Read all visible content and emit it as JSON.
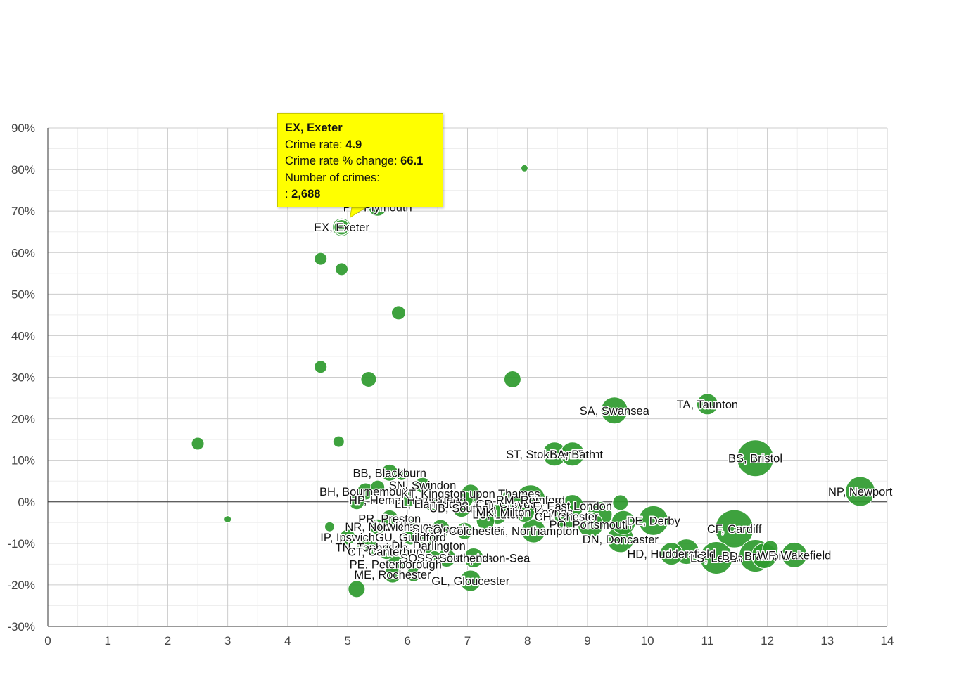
{
  "colors": {
    "bubble": "#2e9a2e",
    "bubble_stroke": "#1f7a1f",
    "tooltip_bg": "#ffff00",
    "grid": "#cccccc",
    "minor_grid": "#eeeeee",
    "zero_line": "#333333"
  },
  "chart_data": {
    "type": "scatter",
    "subtype": "bubble",
    "title": "",
    "xlabel": "",
    "ylabel": "",
    "xlim": [
      0,
      14
    ],
    "ylim": [
      -30,
      90
    ],
    "x_ticks": [
      0,
      1,
      2,
      3,
      4,
      5,
      6,
      7,
      8,
      9,
      10,
      11,
      12,
      13,
      14
    ],
    "x_tick_labels": [
      "0",
      "1",
      "2",
      "3",
      "4",
      "5",
      "6",
      "7",
      "8",
      "9",
      "10",
      "11",
      "12",
      "13",
      "14"
    ],
    "y_ticks": [
      90,
      80,
      70,
      60,
      50,
      40,
      30,
      20,
      10,
      0,
      -10,
      -20,
      -30
    ],
    "y_tick_labels": [
      "90%",
      "80%",
      "70%",
      "60%",
      "50%",
      "40%",
      "30%",
      "20%",
      "10%",
      "0%",
      "-10%",
      "-20%",
      "-30%"
    ],
    "series": [
      {
        "name": "Crime rate vs % change",
        "points": [
          {
            "label": "EX, Exeter",
            "x": 4.9,
            "y": 66.1,
            "r": 13,
            "highlight": true
          },
          {
            "label": "PL, Plymouth",
            "x": 5.5,
            "y": 71,
            "r": 13
          },
          {
            "label": "",
            "x": 7.95,
            "y": 80.3,
            "r": 5
          },
          {
            "label": "",
            "x": 4.55,
            "y": 58.5,
            "r": 9
          },
          {
            "label": "",
            "x": 4.9,
            "y": 56,
            "r": 9
          },
          {
            "label": "",
            "x": 5.85,
            "y": 45.5,
            "r": 10
          },
          {
            "label": "",
            "x": 4.55,
            "y": 32.5,
            "r": 9
          },
          {
            "label": "",
            "x": 5.35,
            "y": 29.5,
            "r": 11
          },
          {
            "label": "",
            "x": 7.75,
            "y": 29.5,
            "r": 12
          },
          {
            "label": "",
            "x": 2.5,
            "y": 14,
            "r": 9
          },
          {
            "label": "",
            "x": 4.85,
            "y": 14.5,
            "r": 8
          },
          {
            "label": "",
            "x": 3.0,
            "y": -4.2,
            "r": 5
          },
          {
            "label": "",
            "x": 4.7,
            "y": -6,
            "r": 7
          },
          {
            "label": "SA, Swansea",
            "x": 9.45,
            "y": 22,
            "r": 19
          },
          {
            "label": "TA, Taunton",
            "x": 11.0,
            "y": 23.5,
            "r": 15
          },
          {
            "label": "ST, Stoke-on-Trent",
            "x": 8.45,
            "y": 11.5,
            "r": 17
          },
          {
            "label": "BA, Bath",
            "x": 8.75,
            "y": 11.5,
            "r": 17
          },
          {
            "label": "BS, Bristol",
            "x": 11.8,
            "y": 10.5,
            "r": 26
          },
          {
            "label": "NP, Newport",
            "x": 13.55,
            "y": 2.5,
            "r": 21
          },
          {
            "label": "BB, Blackburn",
            "x": 5.7,
            "y": 7,
            "r": 12
          },
          {
            "label": "SN, Swindon",
            "x": 6.25,
            "y": 4,
            "r": 11
          },
          {
            "label": "BH, Bournemouth",
            "x": 5.3,
            "y": 2.5,
            "r": 12
          },
          {
            "label": "",
            "x": 5.5,
            "y": 3.5,
            "r": 10
          },
          {
            "label": "",
            "x": 5.9,
            "y": 6.5,
            "r": 8
          },
          {
            "label": "",
            "x": 5.15,
            "y": 0,
            "r": 11
          },
          {
            "label": "HP, Hemel Hempstead",
            "x": 6.0,
            "y": 0.5,
            "r": 11
          },
          {
            "label": "KT, Kingston upon Thames",
            "x": 7.05,
            "y": 2,
            "r": 13
          },
          {
            "label": "",
            "x": 6.95,
            "y": 0.5,
            "r": 12
          },
          {
            "label": "CR, Croydon",
            "x": 7.7,
            "y": -0.5,
            "r": 18
          },
          {
            "label": "RM, Romford",
            "x": 8.05,
            "y": 0.5,
            "r": 21
          },
          {
            "label": "E, East London",
            "x": 8.75,
            "y": -1,
            "r": 16
          },
          {
            "label": "",
            "x": 9.55,
            "y": -0.2,
            "r": 11
          },
          {
            "label": "LL, Llandudno",
            "x": 6.4,
            "y": -0.5,
            "r": 10
          },
          {
            "label": "UB, Southall",
            "x": 6.9,
            "y": -1.5,
            "r": 13
          },
          {
            "label": "LU, Luton",
            "x": 7.5,
            "y": -3,
            "r": 14
          },
          {
            "label": "MK, Milton Keynes",
            "x": 7.95,
            "y": -2.5,
            "r": 14
          },
          {
            "label": "CH, Chester",
            "x": 8.65,
            "y": -3.5,
            "r": 17
          },
          {
            "label": "",
            "x": 9.2,
            "y": -3,
            "r": 18
          },
          {
            "label": "PO, Portsmouth",
            "x": 9.05,
            "y": -5.5,
            "r": 18
          },
          {
            "label": "DE, Derby",
            "x": 10.1,
            "y": -4.5,
            "r": 21
          },
          {
            "label": "",
            "x": 9.6,
            "y": -5,
            "r": 17
          },
          {
            "label": "NN, Northampton",
            "x": 8.1,
            "y": -7,
            "r": 17
          },
          {
            "label": "",
            "x": 7.3,
            "y": -4.5,
            "r": 13
          },
          {
            "label": "PR, Preston",
            "x": 5.7,
            "y": -4,
            "r": 12
          },
          {
            "label": "HA, Harrow",
            "x": 6.0,
            "y": -6,
            "r": 12
          },
          {
            "label": "NR, Norwich",
            "x": 5.5,
            "y": -6,
            "r": 11
          },
          {
            "label": "SL, Slough",
            "x": 6.55,
            "y": -6.5,
            "r": 13
          },
          {
            "label": "CO, Colchester",
            "x": 6.95,
            "y": -7,
            "r": 12
          },
          {
            "label": "GU, Guildford",
            "x": 6.05,
            "y": -8.5,
            "r": 11
          },
          {
            "label": "",
            "x": 6.3,
            "y": -8,
            "r": 11
          },
          {
            "label": "IP, Ipswich",
            "x": 5.0,
            "y": -8.5,
            "r": 11
          },
          {
            "label": "",
            "x": 5.25,
            "y": -10,
            "r": 9
          },
          {
            "label": "TN, Tonbridge",
            "x": 5.4,
            "y": -11,
            "r": 10
          },
          {
            "label": "DL, Darlington",
            "x": 6.35,
            "y": -10.5,
            "r": 12
          },
          {
            "label": "CT, Canterbury",
            "x": 5.65,
            "y": -12,
            "r": 11
          },
          {
            "label": "SO, Southampton",
            "x": 6.65,
            "y": -13.5,
            "r": 13
          },
          {
            "label": "SS, Southend-on-Sea",
            "x": 7.1,
            "y": -13.5,
            "r": 14
          },
          {
            "label": "",
            "x": 6.45,
            "y": -13.5,
            "r": 10
          },
          {
            "label": "PE, Peterborough",
            "x": 5.8,
            "y": -15,
            "r": 12
          },
          {
            "label": "ME, Rochester",
            "x": 5.75,
            "y": -17.5,
            "r": 12
          },
          {
            "label": "",
            "x": 6.1,
            "y": -17.5,
            "r": 10
          },
          {
            "label": "GL, Gloucester",
            "x": 7.05,
            "y": -19,
            "r": 15
          },
          {
            "label": "",
            "x": 5.15,
            "y": -21,
            "r": 12
          },
          {
            "label": "DN, Doncaster",
            "x": 9.55,
            "y": -9,
            "r": 19
          },
          {
            "label": "HD, Huddersfield",
            "x": 10.4,
            "y": -12.5,
            "r": 16
          },
          {
            "label": "",
            "x": 10.65,
            "y": -12,
            "r": 18
          },
          {
            "label": "LS, Leeds",
            "x": 11.15,
            "y": -13.5,
            "r": 23
          },
          {
            "label": "CF, Cardiff",
            "x": 11.45,
            "y": -6.5,
            "r": 27
          },
          {
            "label": "BD, Bradford",
            "x": 11.8,
            "y": -13,
            "r": 23
          },
          {
            "label": "",
            "x": 11.95,
            "y": -13,
            "r": 18
          },
          {
            "label": "",
            "x": 12.05,
            "y": -11.2,
            "r": 11
          },
          {
            "label": "WF, Wakefield",
            "x": 12.45,
            "y": -12.8,
            "r": 18
          }
        ]
      }
    ]
  },
  "tooltip": {
    "title": "EX, Exeter",
    "rate_label": "Crime rate: ",
    "rate_value": "4.9",
    "change_label": "Crime rate % change: ",
    "change_value": "66.1",
    "crimes_label": "Number of crimes:",
    "crimes_prefix": ": ",
    "crimes_value": "2,688"
  }
}
